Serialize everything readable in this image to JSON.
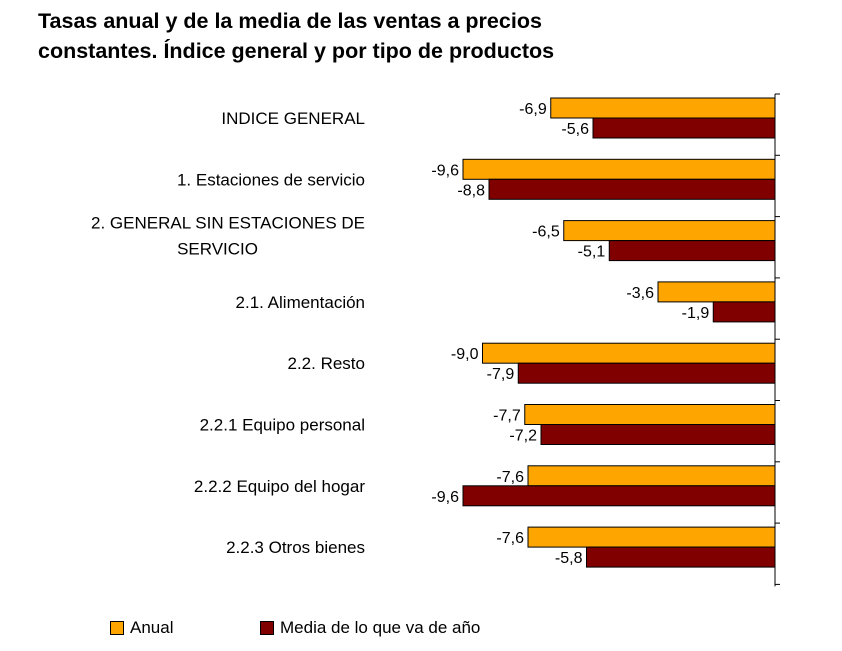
{
  "title_lines": [
    "Tasas anual y de la media de las ventas a precios",
    "constantes. Índice general y por tipo de productos"
  ],
  "colors": {
    "anual": "#FFA500",
    "media": "#800000",
    "axis": "#000000"
  },
  "legend": [
    {
      "label": "Anual",
      "color": "#FFA500"
    },
    {
      "label": "Media de lo que va de año",
      "color": "#800000"
    }
  ],
  "chart_data": {
    "type": "bar",
    "orientation": "horizontal",
    "categories": [
      [
        "INDICE GENERAL"
      ],
      [
        "1. Estaciones de servicio"
      ],
      [
        "2. GENERAL SIN ESTACIONES DE",
        "SERVICIO"
      ],
      [
        "2.1. Alimentación"
      ],
      [
        "2.2. Resto"
      ],
      [
        "2.2.1 Equipo personal"
      ],
      [
        "2.2.2 Equipo del hogar"
      ],
      [
        "2.2.3 Otros bienes"
      ]
    ],
    "series": [
      {
        "name": "Anual",
        "color": "#FFA500",
        "values": [
          -6.9,
          -9.6,
          -6.5,
          -3.6,
          -9.0,
          -7.7,
          -7.6,
          -7.6
        ],
        "labels": [
          "-6,9",
          "-9,6",
          "-6,5",
          "-3,6",
          "-9,0",
          "-7,7",
          "-7,6",
          "-7,6"
        ]
      },
      {
        "name": "Media de lo que va de año",
        "color": "#800000",
        "values": [
          -5.6,
          -8.8,
          -5.1,
          -1.9,
          -7.9,
          -7.2,
          -9.6,
          -5.8
        ],
        "labels": [
          "-5,6",
          "-8,8",
          "-5,1",
          "-1,9",
          "-7,9",
          "-7,2",
          "-9,6",
          "-5,8"
        ]
      }
    ],
    "xlim": [
      -9.6,
      0
    ],
    "legend_position": "bottom"
  }
}
